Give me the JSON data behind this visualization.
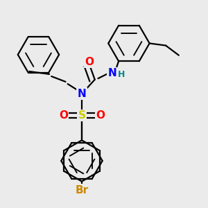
{
  "bg_color": "#ebebeb",
  "bond_color": "#000000",
  "bond_width": 1.6,
  "atom_colors": {
    "N": "#0000ff",
    "O": "#ff0000",
    "S": "#cccc00",
    "Br": "#cc8800",
    "H": "#008888"
  },
  "font_size_atoms": 11,
  "font_size_h": 9,
  "font_size_br": 11
}
